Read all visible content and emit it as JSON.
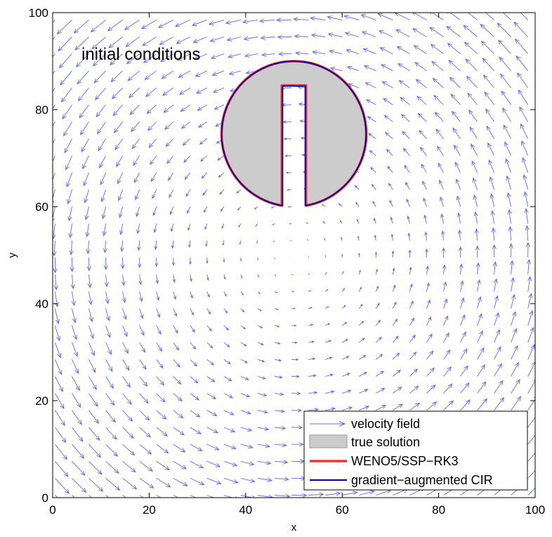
{
  "chart_data": {
    "type": "line",
    "title": "",
    "xlabel": "x",
    "ylabel": "y",
    "xlim": [
      0,
      100
    ],
    "ylim": [
      0,
      100
    ],
    "xticks": [
      0,
      20,
      40,
      60,
      80,
      100
    ],
    "yticks": [
      0,
      20,
      40,
      60,
      80,
      100
    ],
    "grid": false,
    "annotation": "initial conditions",
    "velocity_field": {
      "name": "velocity field",
      "color": "#6666ee",
      "center": [
        50,
        50
      ],
      "rotation": "counter-clockwise",
      "grid_spacing": 3.5
    },
    "shape": {
      "description": "slotted disk (Zalesak)",
      "center": [
        50,
        75
      ],
      "radius": 15,
      "slot_x": [
        47.5,
        52.5
      ],
      "slot_top_y": 85
    },
    "series": [
      {
        "name": "true solution",
        "color": "#cccccc",
        "style": "filled"
      },
      {
        "name": "WENO5/SSP−RK3",
        "color": "#ee3333",
        "style": "line"
      },
      {
        "name": "gradient−augmented CIR",
        "color": "#000099",
        "style": "line"
      }
    ],
    "legend_position": "bottom-right"
  }
}
